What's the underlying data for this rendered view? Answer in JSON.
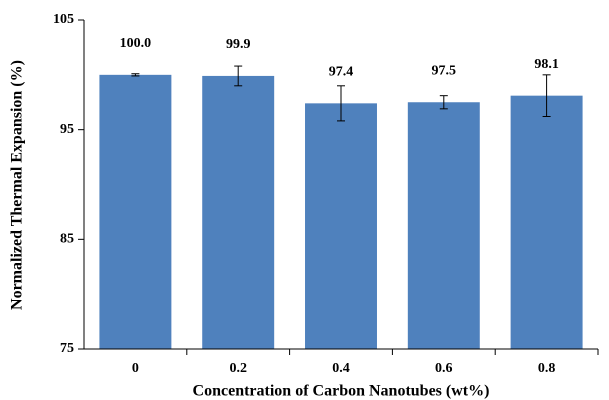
{
  "chart_data": {
    "type": "bar",
    "x_label": "Concentration of Carbon Nanotubes (wt%)",
    "y_label": "Normalized Thermal Expansion (%)",
    "categories": [
      "0",
      "0.2",
      "0.4",
      "0.6",
      "0.8"
    ],
    "values": [
      100.0,
      99.9,
      97.4,
      97.5,
      98.1
    ],
    "value_labels": [
      "100.0",
      "99.9",
      "97.4",
      "97.5",
      "98.1"
    ],
    "errors": [
      0.1,
      0.9,
      1.6,
      0.6,
      1.9
    ],
    "color": "#4f81bd",
    "ylim": [
      75,
      105
    ],
    "yticks": [
      75,
      85,
      95,
      105
    ],
    "grid": false
  }
}
